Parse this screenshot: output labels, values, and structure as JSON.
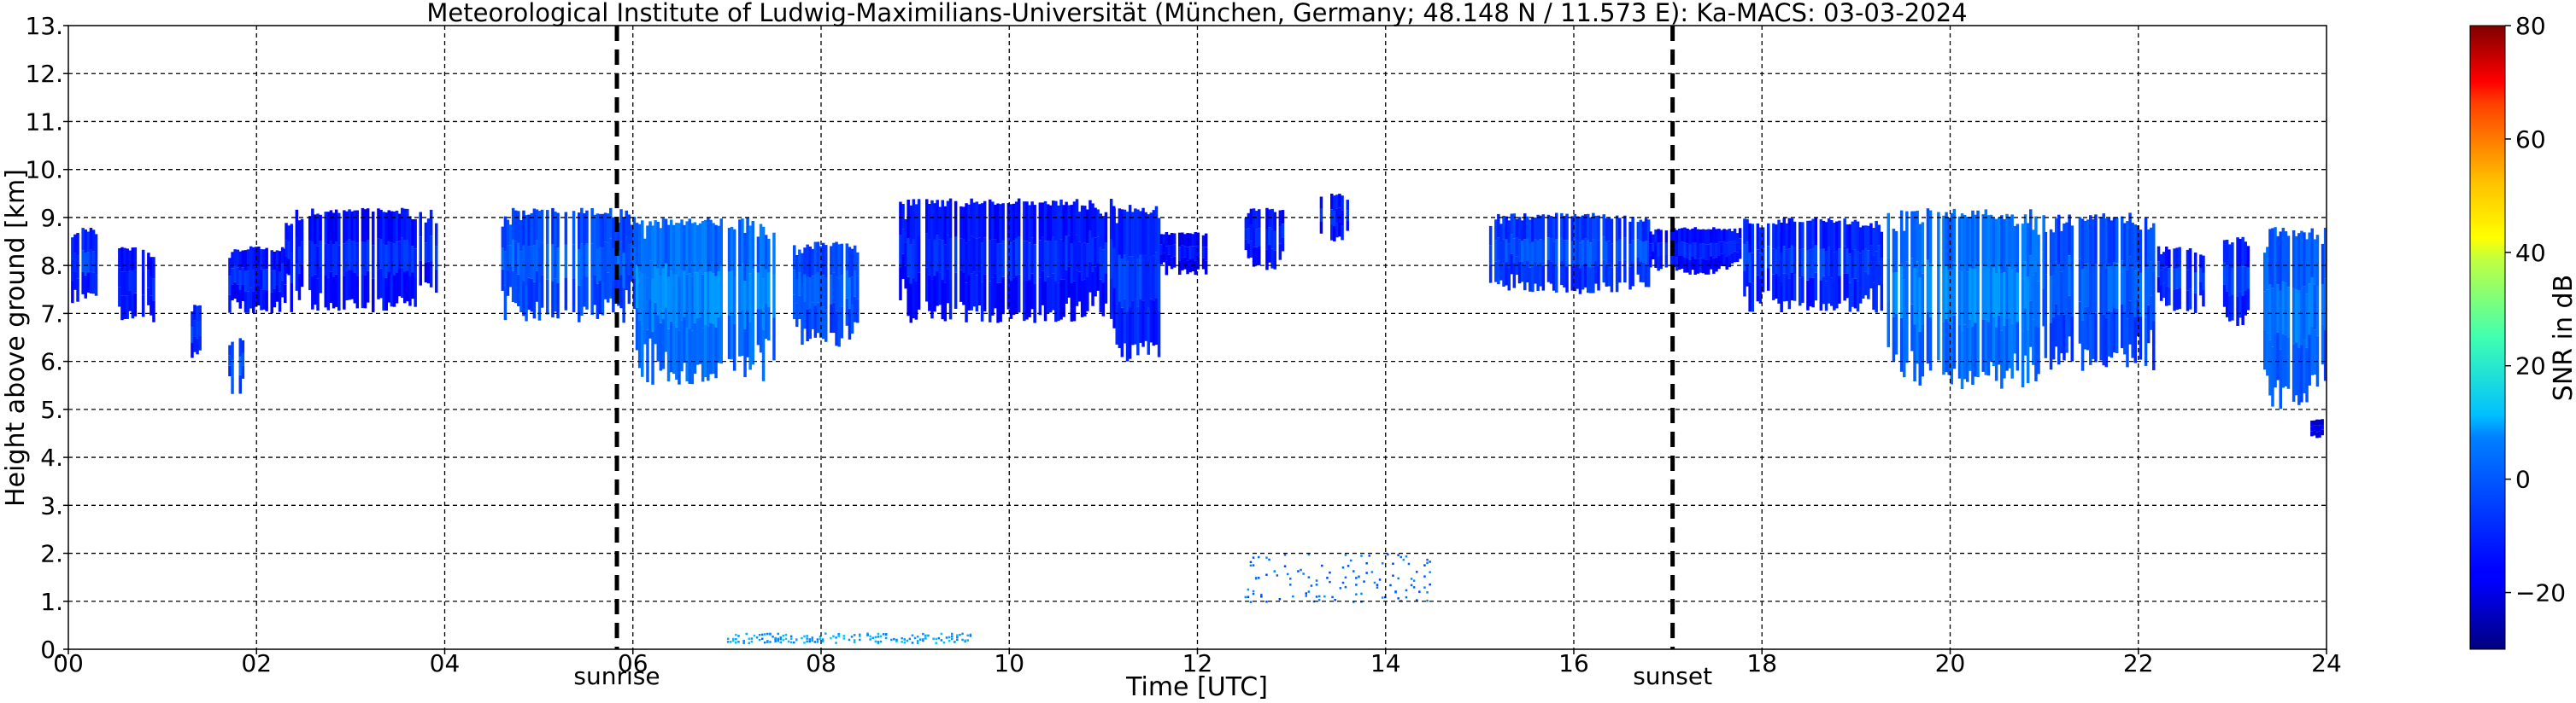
{
  "chart_data": {
    "type": "heatmap",
    "title": "Meteorological Institute of Ludwig-Maximilians-Universität (München, Germany; 48.148 N / 11.573 E):    Ka-MACS: 03-03-2024",
    "xlabel": "Time [UTC]",
    "ylabel": "Height above ground [km]",
    "xlim": [
      0,
      24
    ],
    "ylim": [
      0,
      13
    ],
    "x_ticks": [
      "00",
      "02",
      "04",
      "06",
      "08",
      "10",
      "12",
      "14",
      "16",
      "18",
      "20",
      "22",
      "24"
    ],
    "y_ticks": [
      "0.",
      "1.",
      "2.",
      "3.",
      "4.",
      "5.",
      "6.",
      "7.",
      "8.",
      "9.",
      "10.",
      "11.",
      "12.",
      "13."
    ],
    "grid": true,
    "colorbar": {
      "label": "SNR in dB",
      "range": [
        -30,
        80
      ],
      "ticks": [
        "−20",
        "0",
        "20",
        "40",
        "60",
        "80"
      ],
      "tick_values": [
        -20,
        0,
        20,
        40,
        60,
        80
      ],
      "colormap": "jet"
    },
    "markers": [
      {
        "label": "sunrise",
        "time": 5.83
      },
      {
        "label": "sunset",
        "time": 17.05
      }
    ],
    "echo_regions": [
      {
        "t0": 0.0,
        "t1": 0.3,
        "h_bottom": 7.2,
        "h_top": 8.8,
        "snr": -12
      },
      {
        "t0": 0.5,
        "t1": 0.9,
        "h_bottom": 6.8,
        "h_top": 8.4,
        "snr": -14
      },
      {
        "t0": 1.3,
        "t1": 1.4,
        "h_bottom": 6.0,
        "h_top": 7.2,
        "snr": -12
      },
      {
        "t0": 1.7,
        "t1": 1.85,
        "h_bottom": 5.3,
        "h_top": 6.5,
        "snr": -8
      },
      {
        "t0": 1.7,
        "t1": 2.3,
        "h_bottom": 7.0,
        "h_top": 8.4,
        "snr": -14
      },
      {
        "t0": 2.3,
        "t1": 3.9,
        "h_bottom": 7.0,
        "h_top": 9.2,
        "snr": -14
      },
      {
        "t0": 4.6,
        "t1": 6.0,
        "h_bottom": 6.8,
        "h_top": 9.2,
        "snr": -8
      },
      {
        "t0": 6.0,
        "t1": 7.5,
        "h_bottom": 5.5,
        "h_top": 9.0,
        "snr": -4
      },
      {
        "t0": 7.7,
        "t1": 8.4,
        "h_bottom": 6.3,
        "h_top": 8.5,
        "snr": -8
      },
      {
        "t0": 8.8,
        "t1": 11.1,
        "h_bottom": 6.8,
        "h_top": 9.4,
        "snr": -14
      },
      {
        "t0": 11.1,
        "t1": 11.6,
        "h_bottom": 6.0,
        "h_top": 9.3,
        "snr": -12
      },
      {
        "t0": 11.6,
        "t1": 12.1,
        "h_bottom": 7.8,
        "h_top": 8.7,
        "snr": -16
      },
      {
        "t0": 12.5,
        "t1": 12.9,
        "h_bottom": 7.9,
        "h_top": 9.2,
        "snr": -14
      },
      {
        "t0": 13.3,
        "t1": 13.6,
        "h_bottom": 8.5,
        "h_top": 9.5,
        "snr": -14
      },
      {
        "t0": 15.1,
        "t1": 16.8,
        "h_bottom": 7.4,
        "h_top": 9.1,
        "snr": -10
      },
      {
        "t0": 16.8,
        "t1": 17.8,
        "h_bottom": 7.8,
        "h_top": 8.8,
        "snr": -14
      },
      {
        "t0": 17.8,
        "t1": 19.3,
        "h_bottom": 7.0,
        "h_top": 9.0,
        "snr": -12
      },
      {
        "t0": 19.3,
        "t1": 21.0,
        "h_bottom": 5.4,
        "h_top": 9.2,
        "snr": -4
      },
      {
        "t0": 21.0,
        "t1": 22.2,
        "h_bottom": 5.8,
        "h_top": 9.1,
        "snr": -8
      },
      {
        "t0": 22.2,
        "t1": 22.7,
        "h_bottom": 7.0,
        "h_top": 8.4,
        "snr": -12
      },
      {
        "t0": 22.9,
        "t1": 23.2,
        "h_bottom": 6.7,
        "h_top": 8.6,
        "snr": -12
      },
      {
        "t0": 23.3,
        "t1": 24.0,
        "h_bottom": 5.0,
        "h_top": 8.8,
        "snr": -6
      },
      {
        "t0": 23.8,
        "t1": 24.0,
        "h_bottom": 4.4,
        "h_top": 4.8,
        "snr": -20
      },
      {
        "t0": 12.5,
        "t1": 14.5,
        "h_bottom": 1.0,
        "h_top": 2.0,
        "snr": -6
      },
      {
        "t0": 7.0,
        "t1": 9.6,
        "h_bottom": 0.15,
        "h_top": 0.35,
        "snr": 0
      }
    ]
  }
}
